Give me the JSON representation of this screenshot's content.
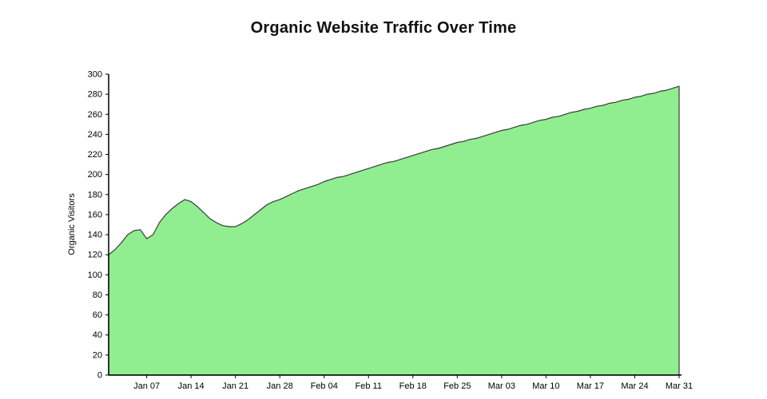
{
  "page": {
    "title": "Organic Website Traffic Over Time"
  },
  "chart_data": {
    "type": "area",
    "title": "Organic Website Traffic Over Time",
    "xlabel": "",
    "ylabel": "Organic Visitors",
    "ylim": [
      0,
      300
    ],
    "y_tick_step": 20,
    "grid": false,
    "legend": false,
    "fill_color": "#90ee90",
    "line_color": "#3a3a3a",
    "axis_color": "#000000",
    "x": [
      "Jan 01",
      "Jan 02",
      "Jan 03",
      "Jan 04",
      "Jan 05",
      "Jan 06",
      "Jan 07",
      "Jan 08",
      "Jan 09",
      "Jan 10",
      "Jan 11",
      "Jan 12",
      "Jan 13",
      "Jan 14",
      "Jan 15",
      "Jan 16",
      "Jan 17",
      "Jan 18",
      "Jan 19",
      "Jan 20",
      "Jan 21",
      "Jan 22",
      "Jan 23",
      "Jan 24",
      "Jan 25",
      "Jan 26",
      "Jan 27",
      "Jan 28",
      "Jan 29",
      "Jan 30",
      "Jan 31",
      "Feb 01",
      "Feb 02",
      "Feb 03",
      "Feb 04",
      "Feb 05",
      "Feb 06",
      "Feb 07",
      "Feb 08",
      "Feb 09",
      "Feb 10",
      "Feb 11",
      "Feb 12",
      "Feb 13",
      "Feb 14",
      "Feb 15",
      "Feb 16",
      "Feb 17",
      "Feb 18",
      "Feb 19",
      "Feb 20",
      "Feb 21",
      "Feb 22",
      "Feb 23",
      "Feb 24",
      "Feb 25",
      "Feb 26",
      "Feb 27",
      "Feb 28",
      "Feb 29",
      "Mar 01",
      "Mar 02",
      "Mar 03",
      "Mar 04",
      "Mar 05",
      "Mar 06",
      "Mar 07",
      "Mar 08",
      "Mar 09",
      "Mar 10",
      "Mar 11",
      "Mar 12",
      "Mar 13",
      "Mar 14",
      "Mar 15",
      "Mar 16",
      "Mar 17",
      "Mar 18",
      "Mar 19",
      "Mar 20",
      "Mar 21",
      "Mar 22",
      "Mar 23",
      "Mar 24",
      "Mar 25",
      "Mar 26",
      "Mar 27",
      "Mar 28",
      "Mar 29",
      "Mar 30",
      "Mar 31"
    ],
    "values": [
      120,
      125,
      132,
      140,
      144,
      145,
      136,
      140,
      152,
      160,
      166,
      171,
      175,
      173,
      168,
      162,
      156,
      152,
      149,
      148,
      148,
      151,
      155,
      160,
      165,
      170,
      173,
      175,
      178,
      181,
      184,
      186,
      188,
      190,
      193,
      195,
      197,
      198,
      200,
      202,
      204,
      206,
      208,
      210,
      212,
      213,
      215,
      217,
      219,
      221,
      223,
      225,
      226,
      228,
      230,
      232,
      233,
      235,
      236,
      238,
      240,
      242,
      244,
      245,
      247,
      249,
      250,
      252,
      254,
      255,
      257,
      258,
      260,
      262,
      263,
      265,
      266,
      268,
      269,
      271,
      272,
      274,
      275,
      277,
      278,
      280,
      281,
      283,
      284,
      286,
      288
    ],
    "x_tick_labels": [
      "Jan 07",
      "Jan 14",
      "Jan 21",
      "Jan 28",
      "Feb 04",
      "Feb 11",
      "Feb 18",
      "Feb 25",
      "Mar 03",
      "Mar 10",
      "Mar 17",
      "Mar 24",
      "Mar 31"
    ],
    "x_tick_indices": [
      6,
      13,
      20,
      27,
      34,
      41,
      48,
      55,
      62,
      69,
      76,
      83,
      90
    ]
  }
}
